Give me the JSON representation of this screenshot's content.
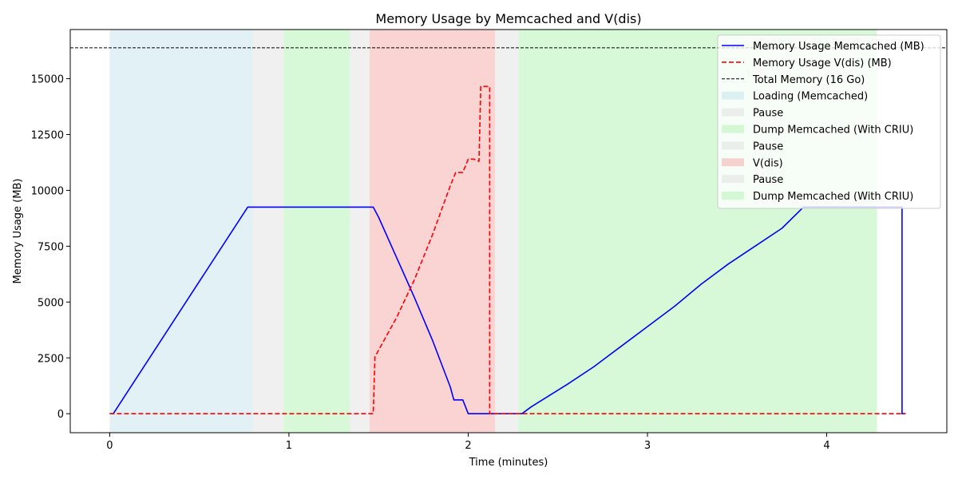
{
  "chart_data": {
    "type": "line",
    "title": "Memory Usage by Memcached and V(dis)",
    "xlabel": "Time (minutes)",
    "ylabel": "Memory Usage (MB)",
    "xlim": [
      -0.22,
      4.67
    ],
    "ylim": [
      -850,
      17200
    ],
    "xticks": [
      0,
      1,
      2,
      3,
      4
    ],
    "yticks": [
      0,
      2500,
      5000,
      7500,
      10000,
      12500,
      15000
    ],
    "grid": false,
    "legend_position": "top-right",
    "phases": [
      {
        "label": "Loading (Memcached)",
        "start": 0.0,
        "end": 0.8,
        "color": "#add8e6"
      },
      {
        "label": "Pause",
        "start": 0.8,
        "end": 0.97,
        "color": "#d3d3d3"
      },
      {
        "label": "Dump Memcached (With CRIU)",
        "start": 0.97,
        "end": 1.34,
        "color": "#90ee90"
      },
      {
        "label": "Pause",
        "start": 1.34,
        "end": 1.45,
        "color": "#d3d3d3"
      },
      {
        "label": "V(dis)",
        "start": 1.45,
        "end": 2.15,
        "color": "#f08080"
      },
      {
        "label": "Pause",
        "start": 2.15,
        "end": 2.28,
        "color": "#d3d3d3"
      },
      {
        "label": "Dump Memcached (With CRIU)",
        "start": 2.28,
        "end": 4.28,
        "color": "#90ee90"
      }
    ],
    "total_memory": {
      "label": "Total Memory (16 Go)",
      "value": 16384,
      "color": "#000000"
    },
    "series": [
      {
        "name": "Memory Usage Memcached (MB)",
        "color": "#0000ff",
        "style": "solid",
        "points": [
          [
            0,
            0
          ],
          [
            0.02,
            0
          ],
          [
            0.77,
            9250
          ],
          [
            1.47,
            9250
          ],
          [
            1.5,
            8800
          ],
          [
            1.6,
            7000
          ],
          [
            1.7,
            5200
          ],
          [
            1.8,
            3300
          ],
          [
            1.9,
            1200
          ],
          [
            1.92,
            620
          ],
          [
            1.97,
            620
          ],
          [
            2.0,
            0
          ],
          [
            2.3,
            0
          ],
          [
            2.35,
            300
          ],
          [
            2.45,
            800
          ],
          [
            2.55,
            1300
          ],
          [
            2.7,
            2100
          ],
          [
            2.85,
            3000
          ],
          [
            3.0,
            3900
          ],
          [
            3.15,
            4800
          ],
          [
            3.3,
            5800
          ],
          [
            3.45,
            6700
          ],
          [
            3.6,
            7500
          ],
          [
            3.75,
            8300
          ],
          [
            3.87,
            9250
          ],
          [
            4.42,
            9250
          ],
          [
            4.42,
            0
          ],
          [
            4.44,
            0
          ]
        ]
      },
      {
        "name": "Memory Usage V(dis) (MB)",
        "color": "#ff0000",
        "style": "dashed",
        "points": [
          [
            0,
            0
          ],
          [
            1.47,
            0
          ],
          [
            1.48,
            2550
          ],
          [
            1.6,
            4300
          ],
          [
            1.7,
            6000
          ],
          [
            1.8,
            8000
          ],
          [
            1.9,
            10200
          ],
          [
            1.93,
            10800
          ],
          [
            1.97,
            10800
          ],
          [
            2.0,
            11400
          ],
          [
            2.03,
            11400
          ],
          [
            2.06,
            11300
          ],
          [
            2.07,
            14650
          ],
          [
            2.12,
            14650
          ],
          [
            2.12,
            0
          ],
          [
            4.44,
            0
          ]
        ]
      }
    ]
  }
}
